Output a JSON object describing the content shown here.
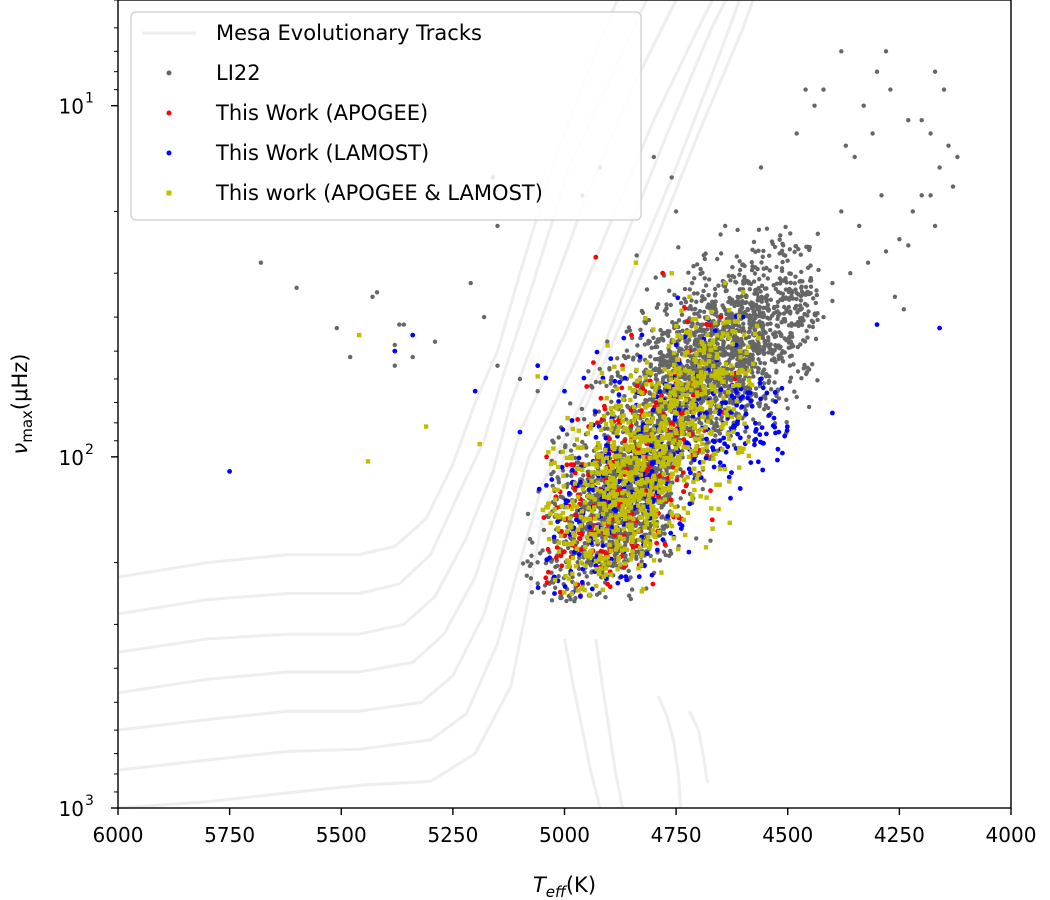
{
  "chart_data": {
    "type": "scatter",
    "xlabel": {
      "main": "T",
      "sub": "eff",
      "unit": "(K)"
    },
    "ylabel": {
      "main": "ν",
      "sub": "max",
      "unit": "(μHz)"
    },
    "xlim": [
      6000,
      4000
    ],
    "ylim": [
      1000,
      5
    ],
    "y_scale": "log",
    "y_inverted": true,
    "x_inverted": true,
    "grid": false,
    "legend_position": "upper-left",
    "x_ticks": [
      6000,
      5750,
      5500,
      5250,
      5000,
      4750,
      4500,
      4250,
      4000
    ],
    "x_tick_labels": [
      "6000",
      "5750",
      "5500",
      "5250",
      "5000",
      "4750",
      "4500",
      "4250",
      "4000"
    ],
    "y_ticks": [
      {
        "value": 10,
        "base": "10",
        "exp": "1"
      },
      {
        "value": 100,
        "base": "10",
        "exp": "2"
      },
      {
        "value": 1000,
        "base": "10",
        "exp": "3"
      }
    ],
    "series": [
      {
        "name": "Mesa Evolutionary Tracks",
        "kind": "line",
        "color": "#eeeeee"
      },
      {
        "name": "LI22",
        "kind": "scatter",
        "color": "#666666"
      },
      {
        "name": "This Work (APOGEE)",
        "kind": "scatter",
        "color": "#ff0000"
      },
      {
        "name": "This Work (LAMOST)",
        "kind": "scatter",
        "color": "#0000ff"
      },
      {
        "name": "This work (APOGEE & LAMOST)",
        "kind": "scatter",
        "color": "#bfbf00"
      }
    ],
    "tracks": [
      [
        [
          6000,
          1000
        ],
        [
          5800,
          960
        ],
        [
          5600,
          900
        ],
        [
          5450,
          860
        ],
        [
          5300,
          840
        ],
        [
          5200,
          700
        ],
        [
          5120,
          450
        ],
        [
          5080,
          250
        ],
        [
          5050,
          150
        ],
        [
          5000,
          100
        ],
        [
          4900,
          50
        ],
        [
          4800,
          25
        ],
        [
          4700,
          12
        ],
        [
          4600,
          6
        ],
        [
          4550,
          4
        ]
      ],
      [
        [
          6000,
          780
        ],
        [
          5800,
          730
        ],
        [
          5620,
          690
        ],
        [
          5460,
          680
        ],
        [
          5300,
          640
        ],
        [
          5220,
          540
        ],
        [
          5150,
          340
        ],
        [
          5100,
          200
        ],
        [
          5050,
          120
        ],
        [
          4950,
          65
        ],
        [
          4850,
          30
        ],
        [
          4750,
          15
        ],
        [
          4650,
          7
        ],
        [
          4580,
          4
        ]
      ],
      [
        [
          6000,
          600
        ],
        [
          5800,
          560
        ],
        [
          5620,
          530
        ],
        [
          5460,
          530
        ],
        [
          5320,
          500
        ],
        [
          5250,
          420
        ],
        [
          5180,
          280
        ],
        [
          5130,
          170
        ],
        [
          5080,
          100
        ],
        [
          4980,
          55
        ],
        [
          4870,
          25
        ],
        [
          4770,
          12
        ],
        [
          4670,
          6
        ],
        [
          4600,
          4
        ]
      ],
      [
        [
          6000,
          470
        ],
        [
          5800,
          430
        ],
        [
          5620,
          410
        ],
        [
          5460,
          410
        ],
        [
          5340,
          385
        ],
        [
          5270,
          320
        ],
        [
          5200,
          220
        ],
        [
          5150,
          140
        ],
        [
          5100,
          85
        ],
        [
          5000,
          45
        ],
        [
          4900,
          22
        ],
        [
          4800,
          11
        ],
        [
          4700,
          6
        ],
        [
          4630,
          4
        ]
      ],
      [
        [
          6000,
          360
        ],
        [
          5800,
          330
        ],
        [
          5620,
          320
        ],
        [
          5460,
          320
        ],
        [
          5360,
          300
        ],
        [
          5290,
          250
        ],
        [
          5220,
          170
        ],
        [
          5160,
          110
        ],
        [
          5120,
          70
        ],
        [
          5050,
          40
        ],
        [
          4950,
          18
        ],
        [
          4850,
          9
        ],
        [
          4750,
          5
        ],
        [
          4690,
          4
        ]
      ],
      [
        [
          6000,
          280
        ],
        [
          5800,
          255
        ],
        [
          5620,
          245
        ],
        [
          5460,
          245
        ],
        [
          5370,
          230
        ],
        [
          5300,
          190
        ],
        [
          5240,
          130
        ],
        [
          5180,
          90
        ],
        [
          5140,
          60
        ],
        [
          5080,
          35
        ],
        [
          4990,
          15
        ],
        [
          4890,
          8
        ],
        [
          4800,
          4.5
        ]
      ],
      [
        [
          6000,
          220
        ],
        [
          5800,
          200
        ],
        [
          5620,
          190
        ],
        [
          5460,
          190
        ],
        [
          5380,
          180
        ],
        [
          5310,
          150
        ],
        [
          5250,
          105
        ],
        [
          5200,
          70
        ],
        [
          5150,
          50
        ],
        [
          5100,
          30
        ],
        [
          5020,
          14
        ],
        [
          4930,
          7
        ],
        [
          4850,
          4
        ]
      ],
      [
        [
          4920,
          1000
        ],
        [
          4940,
          800
        ],
        [
          4960,
          600
        ],
        [
          4980,
          450
        ],
        [
          5000,
          330
        ]
      ],
      [
        [
          4870,
          1000
        ],
        [
          4885,
          800
        ],
        [
          4900,
          600
        ],
        [
          4915,
          450
        ],
        [
          4930,
          330
        ]
      ],
      [
        [
          4740,
          1000
        ],
        [
          4745,
          800
        ],
        [
          4755,
          650
        ],
        [
          4770,
          550
        ],
        [
          4790,
          480
        ]
      ],
      [
        [
          4680,
          850
        ],
        [
          4690,
          700
        ],
        [
          4700,
          600
        ],
        [
          4720,
          530
        ]
      ]
    ],
    "li22_isolated": [
      [
        5680,
        28
      ],
      [
        5600,
        33
      ],
      [
        5510,
        43
      ],
      [
        5480,
        52
      ],
      [
        5420,
        34
      ],
      [
        5380,
        48
      ],
      [
        5360,
        42
      ],
      [
        5340,
        52
      ],
      [
        5290,
        47
      ],
      [
        5210,
        32
      ],
      [
        5160,
        16
      ],
      [
        5150,
        22
      ],
      [
        4960,
        18
      ],
      [
        5180,
        40
      ],
      [
        5100,
        60
      ],
      [
        5060,
        65
      ],
      [
        4920,
        15
      ],
      [
        4800,
        14
      ],
      [
        4760,
        16
      ],
      [
        4750,
        20
      ],
      [
        4640,
        22
      ],
      [
        4560,
        15
      ],
      [
        4480,
        12
      ],
      [
        4440,
        10
      ],
      [
        4420,
        9
      ],
      [
        4380,
        7
      ],
      [
        4330,
        10
      ],
      [
        4300,
        8
      ],
      [
        4270,
        9
      ],
      [
        4230,
        11
      ],
      [
        4180,
        12
      ],
      [
        4140,
        13
      ],
      [
        4120,
        14
      ],
      [
        4160,
        15
      ],
      [
        4200,
        18
      ],
      [
        4220,
        20
      ],
      [
        4250,
        24
      ],
      [
        4280,
        26
      ],
      [
        4320,
        28
      ],
      [
        4360,
        30
      ],
      [
        4400,
        32
      ],
      [
        4180,
        18
      ],
      [
        4130,
        17
      ],
      [
        4340,
        22
      ],
      [
        4310,
        12
      ],
      [
        4370,
        13
      ],
      [
        4460,
        9
      ],
      [
        4280,
        7
      ],
      [
        4170,
        8
      ],
      [
        4150,
        9
      ],
      [
        4400,
        36
      ],
      [
        4420,
        40
      ],
      [
        4260,
        35
      ],
      [
        4240,
        38
      ],
      [
        4230,
        25
      ],
      [
        4170,
        22
      ],
      [
        4200,
        11
      ],
      [
        4350,
        14
      ],
      [
        4290,
        18
      ],
      [
        4380,
        20
      ],
      [
        5380,
        55
      ],
      [
        5150,
        55
      ],
      [
        5430,
        35
      ],
      [
        5370,
        42
      ]
    ],
    "lamost_isolated": [
      [
        5750,
        110
      ],
      [
        5340,
        45
      ],
      [
        5380,
        50
      ],
      [
        4400,
        75
      ],
      [
        4300,
        42
      ],
      [
        4160,
        43
      ],
      [
        5200,
        65
      ],
      [
        5060,
        55
      ],
      [
        4900,
        110
      ],
      [
        4600,
        40
      ],
      [
        4520,
        85
      ],
      [
        4650,
        95
      ],
      [
        5100,
        85
      ],
      [
        5000,
        65
      ],
      [
        4700,
        55
      ],
      [
        4750,
        48
      ],
      [
        4590,
        68
      ],
      [
        4560,
        60
      ]
    ],
    "apogee_isolated": [
      [
        4930,
        27
      ],
      [
        4780,
        30
      ],
      [
        4850,
        45
      ],
      [
        4900,
        95
      ],
      [
        4980,
        120
      ],
      [
        5040,
        100
      ],
      [
        4820,
        65
      ],
      [
        4700,
        65
      ],
      [
        4760,
        80
      ],
      [
        4870,
        55
      ],
      [
        4650,
        40
      ],
      [
        4720,
        50
      ]
    ],
    "both_isolated": [
      [
        5460,
        45
      ],
      [
        5310,
        82
      ],
      [
        5440,
        103
      ],
      [
        5060,
        59
      ],
      [
        5190,
        92
      ],
      [
        4900,
        150
      ],
      [
        4640,
        32
      ],
      [
        4720,
        35
      ],
      [
        4760,
        30
      ],
      [
        4840,
        28
      ],
      [
        4680,
        45
      ],
      [
        4600,
        34
      ]
    ]
  }
}
